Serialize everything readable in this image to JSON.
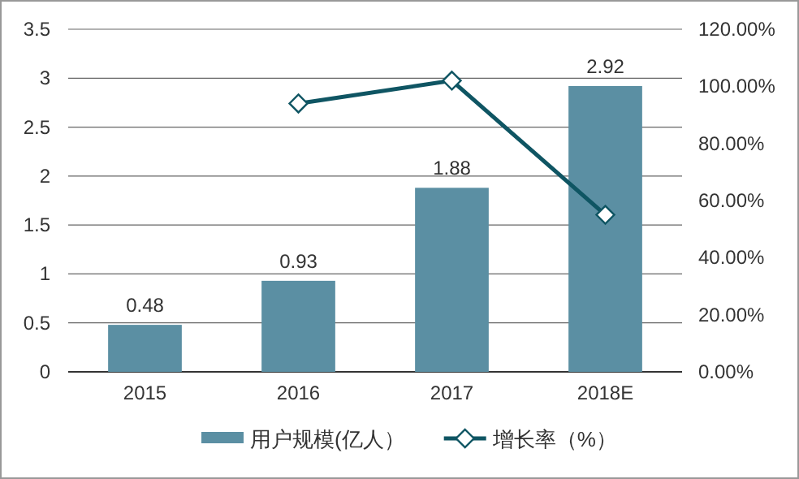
{
  "chart_data": {
    "type": "bar",
    "categories": [
      "2015",
      "2016",
      "2017",
      "2018E"
    ],
    "series": [
      {
        "name": "用户规模(亿人）",
        "color": "#5b8fa3",
        "values": [
          0.48,
          0.93,
          1.88,
          2.92
        ],
        "value_labels": [
          "0.48",
          "0.93",
          "1.88",
          "2.92"
        ]
      },
      {
        "name": "增长率（%）",
        "type": "line",
        "axis": "y2",
        "color": "#0f5563",
        "marker": "diamond",
        "values": [
          null,
          94,
          102,
          55
        ]
      }
    ],
    "ylim": [
      0,
      3.5
    ],
    "yticks": [
      0,
      0.5,
      1,
      1.5,
      2,
      2.5,
      3,
      3.5
    ],
    "y2lim": [
      0,
      120
    ],
    "y2ticks": [
      {
        "value": 0,
        "label": "0.00%"
      },
      {
        "value": 20,
        "label": "20.00%"
      },
      {
        "value": 40,
        "label": "40.00%"
      },
      {
        "value": 60,
        "label": "60.00%"
      },
      {
        "value": 80,
        "label": "80.00%"
      },
      {
        "value": 100,
        "label": "100.00%"
      },
      {
        "value": 120,
        "label": "120.00%"
      }
    ],
    "grid": "y",
    "legend": "bottom"
  }
}
